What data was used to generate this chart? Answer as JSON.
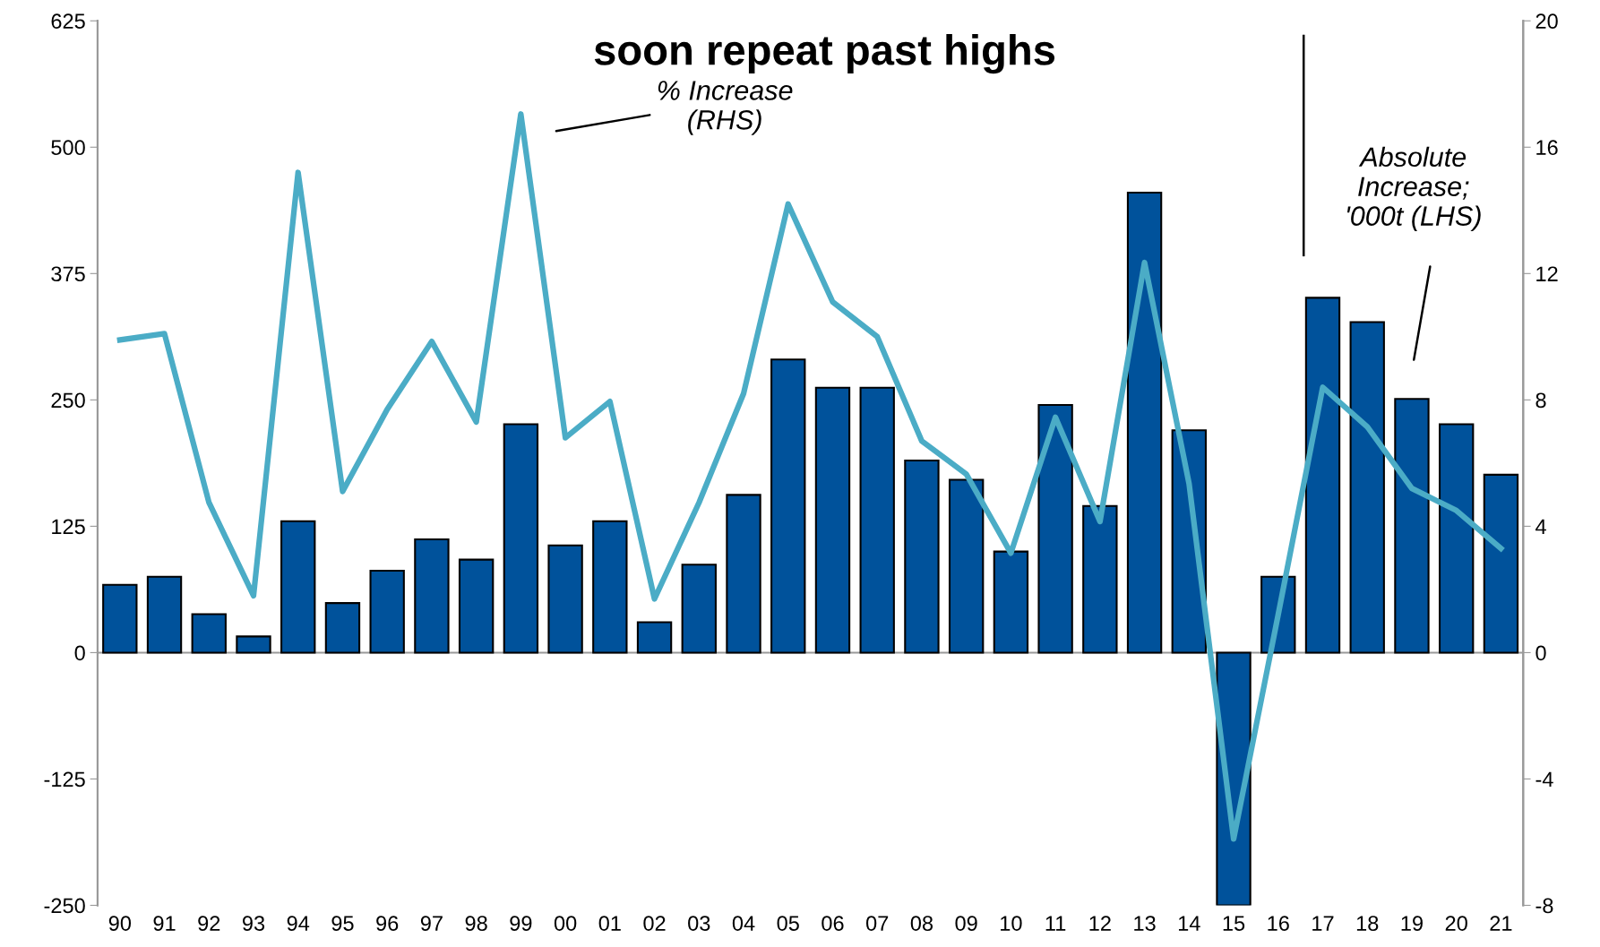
{
  "chart_data": {
    "type": "bar",
    "title": "soon repeat past highs",
    "categories": [
      "90",
      "91",
      "92",
      "93",
      "94",
      "95",
      "96",
      "97",
      "98",
      "99",
      "00",
      "01",
      "02",
      "03",
      "04",
      "05",
      "06",
      "07",
      "08",
      "09",
      "10",
      "11",
      "12",
      "13",
      "14",
      "15",
      "16",
      "17",
      "18",
      "19",
      "20",
      "21"
    ],
    "series": [
      {
        "color": "#00529b",
        "values": [
          67,
          75,
          38,
          16,
          130,
          49,
          81,
          112,
          92,
          226,
          106,
          130,
          30,
          87,
          156,
          290,
          262,
          262,
          190,
          171,
          100,
          245,
          145,
          455,
          220,
          -250,
          75,
          351,
          327,
          251,
          226,
          176
        ]
      },
      {
        "type": "line",
        "axis": "y2",
        "color": "#4bacc6",
        "values": [
          9.9,
          10.1,
          4.75,
          1.8,
          15.2,
          5.1,
          7.7,
          9.85,
          7.3,
          17.05,
          6.8,
          7.95,
          1.7,
          4.75,
          8.2,
          14.2,
          11.1,
          10.0,
          6.7,
          5.65,
          3.15,
          7.45,
          4.15,
          12.35,
          5.35,
          -5.9,
          1.2,
          8.4,
          7.15,
          5.2,
          4.5,
          3.3
        ]
      }
    ],
    "ylim": [
      -250,
      625
    ],
    "yticks": [
      -250,
      -125,
      0,
      125,
      250,
      375,
      500,
      625
    ],
    "y2lim": [
      -8,
      20
    ],
    "y2ticks": [
      -8,
      -4,
      0,
      4,
      8,
      12,
      16,
      20
    ],
    "annotations": [
      "% Increase\n(RHS)",
      "Absolute\nIncrease;\n'000t (LHS)"
    ],
    "ref_lines": [
      {
        "axis": "y",
        "value": 0,
        "color": "#999999",
        "line_style": "solid"
      }
    ],
    "grid": false,
    "legend": false,
    "marker": "none",
    "line_style": "solid"
  }
}
